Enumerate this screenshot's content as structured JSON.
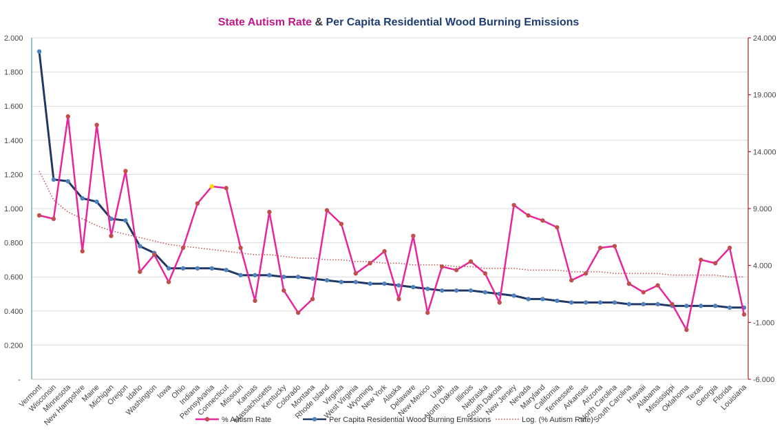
{
  "chart_data": {
    "type": "line",
    "title_parts": [
      {
        "text": "State Autism Rate",
        "color": "#c0178a"
      },
      {
        "text": " & ",
        "color": "#333333"
      },
      {
        "text": "Per Capita Residential Wood Burning Emissions",
        "color": "#1f3c73"
      }
    ],
    "categories": [
      "Vermont",
      "Wisconsin",
      "Minnesota",
      "New Hampshire",
      "Maine",
      "Michigan",
      "Oregon",
      "Idaho",
      "Washington",
      "Iowa",
      "Ohio",
      "Indiana",
      "Pennsylvania",
      "Connecticut",
      "Missouri",
      "Kansas",
      "Massachusetts",
      "Kentucky",
      "Colorado",
      "Montana",
      "Rhode Island",
      "Virginia",
      "West Virginia",
      "Wyoming",
      "New York",
      "Alaska",
      "Delaware",
      "New Mexico",
      "Utah",
      "North Dakota",
      "Illinois",
      "Nebraska",
      "South Dakota",
      "New Jersey",
      "Nevada",
      "Maryland",
      "California",
      "Tennessee",
      "Arkansas",
      "Arizona",
      "North Carolina",
      "South Carolina",
      "Hawaii",
      "Alabama",
      "Mississippi",
      "Oklahoma",
      "Texas",
      "Georgia",
      "Florida",
      "Louisiana"
    ],
    "y_left": {
      "min": 0,
      "max": 2.0,
      "ticks": [
        {
          "value": 0,
          "label": "-"
        },
        {
          "value": 0.2,
          "label": "0.200"
        },
        {
          "value": 0.4,
          "label": "0.400"
        },
        {
          "value": 0.6,
          "label": "0.600"
        },
        {
          "value": 0.8,
          "label": "0.800"
        },
        {
          "value": 1.0,
          "label": "1.000"
        },
        {
          "value": 1.2,
          "label": "1.200"
        },
        {
          "value": 1.4,
          "label": "1.400"
        },
        {
          "value": 1.6,
          "label": "1.600"
        },
        {
          "value": 1.8,
          "label": "1.800"
        },
        {
          "value": 2.0,
          "label": "2.000"
        }
      ],
      "color": "#2e8b8b"
    },
    "y_right": {
      "min": -6,
      "max": 24,
      "ticks": [
        {
          "value": -6,
          "label": "-6.000"
        },
        {
          "value": -1,
          "label": "-1.000"
        },
        {
          "value": 4,
          "label": "4.000"
        },
        {
          "value": 9,
          "label": "9.000"
        },
        {
          "value": 14,
          "label": "14.000"
        },
        {
          "value": 19,
          "label": "19.000"
        },
        {
          "value": 24,
          "label": "24.000"
        }
      ],
      "color": "#8b0000"
    },
    "grid": true,
    "legend_position": "bottom",
    "series": [
      {
        "name": "% Autism Rate",
        "axis": "left",
        "style": "line-markers",
        "line_color": "#e8259a",
        "marker_color": "#c0504d",
        "highlight_index": 12,
        "highlight_color": "#ffd700",
        "values": [
          0.96,
          0.94,
          1.54,
          0.75,
          1.49,
          0.84,
          1.22,
          0.63,
          0.73,
          0.57,
          0.77,
          1.03,
          1.13,
          1.12,
          0.77,
          0.46,
          0.98,
          0.52,
          0.39,
          0.47,
          0.99,
          0.91,
          0.62,
          0.68,
          0.75,
          0.47,
          0.84,
          0.39,
          0.66,
          0.64,
          0.69,
          0.62,
          0.45,
          1.02,
          0.96,
          0.93,
          0.89,
          0.58,
          0.62,
          0.77,
          0.78,
          0.56,
          0.51,
          0.55,
          0.44,
          0.29,
          0.7,
          0.68,
          0.77,
          0.38
        ]
      },
      {
        "name": "Per Capita Residential Wood Burning Emissions",
        "axis": "left",
        "style": "line-markers",
        "line_color": "#1f3864",
        "marker_color": "#4f81bd",
        "values": [
          1.92,
          1.17,
          1.16,
          1.06,
          1.04,
          0.94,
          0.93,
          0.78,
          0.74,
          0.65,
          0.65,
          0.65,
          0.65,
          0.64,
          0.61,
          0.61,
          0.61,
          0.6,
          0.6,
          0.59,
          0.58,
          0.57,
          0.57,
          0.56,
          0.56,
          0.55,
          0.54,
          0.53,
          0.52,
          0.52,
          0.52,
          0.51,
          0.5,
          0.49,
          0.47,
          0.47,
          0.46,
          0.45,
          0.45,
          0.45,
          0.45,
          0.44,
          0.44,
          0.44,
          0.43,
          0.43,
          0.43,
          0.43,
          0.42,
          0.42
        ]
      },
      {
        "name": "Log. (% Autism Rate)",
        "axis": "left",
        "style": "dotted",
        "line_color": "#c0504d",
        "values": [
          1.22,
          1.05,
          0.98,
          0.94,
          0.9,
          0.87,
          0.85,
          0.83,
          0.81,
          0.79,
          0.78,
          0.77,
          0.76,
          0.75,
          0.74,
          0.73,
          0.73,
          0.72,
          0.71,
          0.71,
          0.7,
          0.7,
          0.69,
          0.69,
          0.68,
          0.68,
          0.67,
          0.67,
          0.67,
          0.66,
          0.66,
          0.65,
          0.65,
          0.65,
          0.64,
          0.64,
          0.64,
          0.63,
          0.63,
          0.63,
          0.62,
          0.62,
          0.62,
          0.62,
          0.61,
          0.61,
          0.61,
          0.61,
          0.6,
          0.6
        ]
      }
    ]
  }
}
